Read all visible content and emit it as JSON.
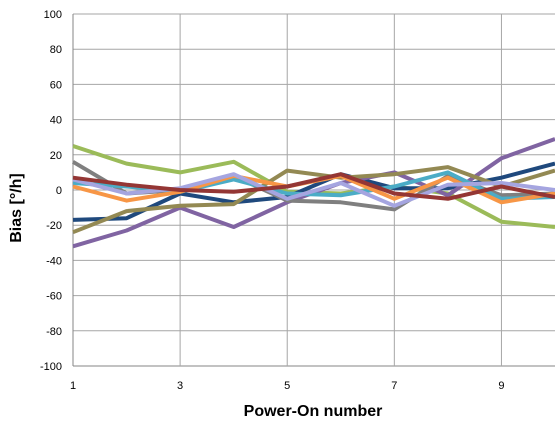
{
  "chart_data": {
    "type": "line",
    "title": "",
    "xlabel": "Power-On number",
    "ylabel": "Bias [°/h]",
    "x": [
      1,
      2,
      3,
      4,
      5,
      6,
      7,
      8,
      9,
      10
    ],
    "xlim": [
      1,
      10
    ],
    "xticks": [
      1,
      3,
      5,
      7,
      9
    ],
    "ylim": [
      -100,
      100
    ],
    "yticks": [
      -100,
      -80,
      -60,
      -40,
      -20,
      0,
      20,
      40,
      60,
      80,
      100
    ],
    "grid": true,
    "legend": "none",
    "series": [
      {
        "color": "#9bbb59",
        "values": [
          25,
          15,
          10,
          16,
          -1,
          -2,
          2,
          -2,
          -18,
          -21
        ]
      },
      {
        "color": "#1f497d",
        "values": [
          -17,
          -16,
          -2,
          -7,
          -4,
          9,
          1,
          1,
          7,
          15
        ]
      },
      {
        "color": "#8064a2",
        "values": [
          -32,
          -23,
          -10,
          -21,
          -7,
          4,
          10,
          -3,
          18,
          29
        ]
      },
      {
        "color": "#938953",
        "values": [
          -24,
          -12,
          -9,
          -8,
          11,
          7,
          9,
          13,
          2,
          11
        ]
      },
      {
        "color": "#7f7f7f",
        "values": [
          16,
          -2,
          0,
          8,
          -6,
          -7,
          -11,
          8,
          -3,
          -2
        ]
      },
      {
        "color": "#4bacc6",
        "values": [
          4,
          2,
          -1,
          6,
          -2,
          -3,
          2,
          10,
          -5,
          -4
        ]
      },
      {
        "color": "#f79646",
        "values": [
          2,
          -6,
          -1,
          8,
          2,
          8,
          -5,
          7,
          -7,
          -2
        ]
      },
      {
        "color": "#a5a5e0",
        "values": [
          6,
          -2,
          1,
          9,
          -5,
          4,
          -9,
          3,
          4,
          0
        ]
      },
      {
        "color": "#943634",
        "values": [
          7,
          3,
          0,
          -1,
          2,
          9,
          -2,
          -5,
          2,
          -4
        ]
      }
    ]
  }
}
